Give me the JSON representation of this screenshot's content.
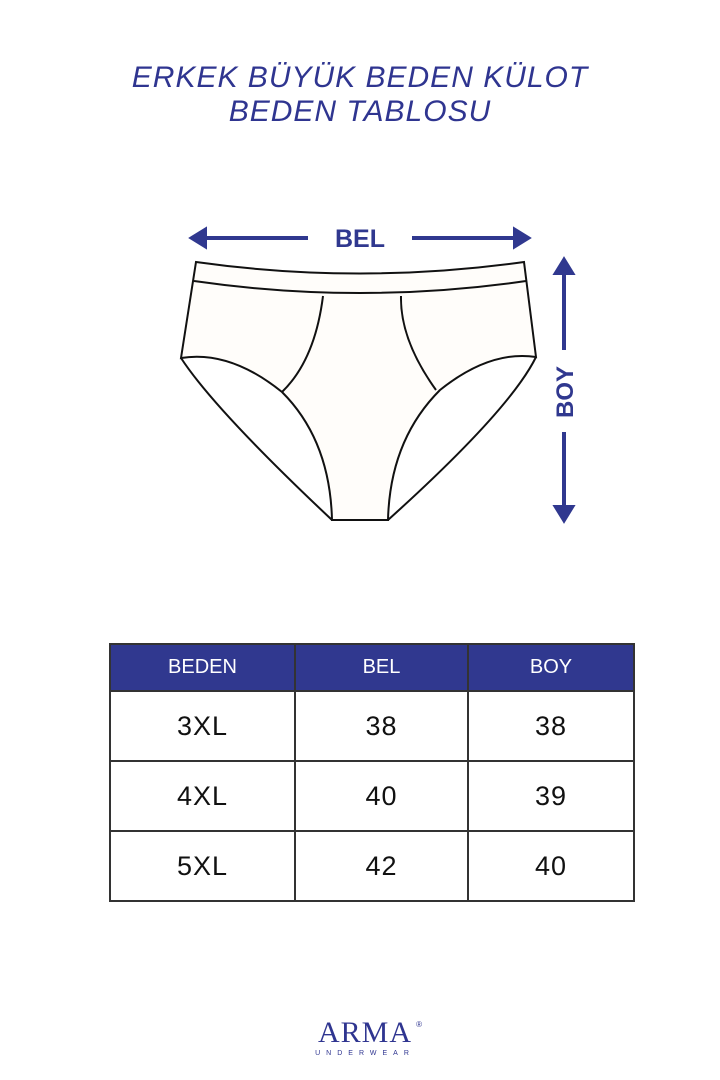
{
  "title": {
    "line1": "ERKEK BÜYÜK BEDEN KÜLOT",
    "line2": "BEDEN TABLOSU"
  },
  "diagram": {
    "width_label": "BEL",
    "height_label": "BOY"
  },
  "table": {
    "headers": [
      "BEDEN",
      "BEL",
      "BOY"
    ],
    "rows": [
      [
        "3XL",
        "38",
        "38"
      ],
      [
        "4XL",
        "40",
        "39"
      ],
      [
        "5XL",
        "42",
        "40"
      ]
    ]
  },
  "brand": {
    "name": "ARMA",
    "sub": "UNDERWEAR",
    "reg": "®"
  },
  "colors": {
    "accent": "#30388f"
  }
}
